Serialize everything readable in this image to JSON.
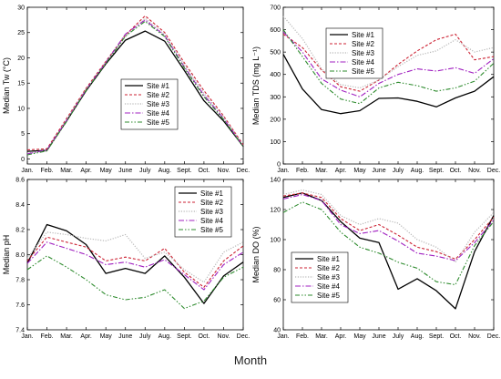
{
  "figure": {
    "xlabel": "Month"
  },
  "series_styles": [
    {
      "color": "#000000",
      "dash": "",
      "width": 1.3
    },
    {
      "color": "#cc2233",
      "dash": "3 2",
      "width": 1.1
    },
    {
      "color": "#b8b8b8",
      "dash": "1.2 1.6",
      "width": 1.2
    },
    {
      "color": "#a020c0",
      "dash": "6 2 1.5 2",
      "width": 1.1
    },
    {
      "color": "#2e8b2e",
      "dash": "5 2 1.5 2 1.5 2",
      "width": 1.1
    }
  ],
  "chart_data": [
    {
      "type": "line",
      "ylabel": "Median Tw (°C)",
      "ylim": [
        -1,
        30
      ],
      "yticks": [
        0,
        5,
        10,
        15,
        20,
        25,
        30
      ],
      "categories": [
        "Jan.",
        "Feb.",
        "Mar.",
        "Apr.",
        "May",
        "June",
        "July",
        "Aug.",
        "Sept.",
        "Oct.",
        "Nov.",
        "Dec."
      ],
      "legend_position": "center",
      "series": [
        {
          "name": "Site #1",
          "values": [
            1.5,
            1.7,
            7.5,
            13.5,
            18.8,
            23.5,
            25.3,
            23.3,
            17.5,
            11.5,
            7.5,
            2.5
          ]
        },
        {
          "name": "Site #2",
          "values": [
            1.8,
            2.0,
            8.0,
            14.0,
            19.3,
            24.5,
            28.3,
            25.0,
            19.0,
            13.5,
            8.5,
            2.8
          ]
        },
        {
          "name": "Site #3",
          "values": [
            1.2,
            1.5,
            7.8,
            13.8,
            19.0,
            24.2,
            27.8,
            24.6,
            18.6,
            13.0,
            8.3,
            2.6
          ]
        },
        {
          "name": "Site #4",
          "values": [
            1.0,
            1.8,
            7.6,
            13.7,
            19.1,
            24.7,
            27.5,
            24.4,
            18.2,
            12.6,
            8.0,
            2.5
          ]
        },
        {
          "name": "Site #5",
          "values": [
            0.8,
            1.6,
            7.4,
            13.6,
            18.9,
            24.3,
            27.2,
            24.2,
            18.0,
            12.3,
            7.8,
            2.4
          ]
        }
      ]
    },
    {
      "type": "line",
      "ylabel": "Median TDS (mg L⁻¹)",
      "ylim": [
        0,
        700
      ],
      "yticks": [
        0,
        100,
        200,
        300,
        400,
        500,
        600,
        700
      ],
      "categories": [
        "Jan.",
        "Feb.",
        "Mar.",
        "Apr.",
        "May",
        "June",
        "July",
        "Aug.",
        "Sept.",
        "Oct.",
        "Nov.",
        "Dec."
      ],
      "legend_position": "center",
      "series": [
        {
          "name": "Site #1",
          "values": [
            490,
            335,
            243,
            225,
            238,
            293,
            295,
            280,
            255,
            295,
            325,
            390
          ]
        },
        {
          "name": "Site #2",
          "values": [
            580,
            520,
            420,
            345,
            325,
            375,
            445,
            505,
            555,
            580,
            465,
            480
          ]
        },
        {
          "name": "Site #3",
          "values": [
            660,
            560,
            425,
            355,
            340,
            375,
            435,
            485,
            505,
            555,
            500,
            520
          ]
        },
        {
          "name": "Site #4",
          "values": [
            590,
            500,
            380,
            330,
            300,
            360,
            400,
            425,
            415,
            430,
            405,
            470
          ]
        },
        {
          "name": "Site #5",
          "values": [
            600,
            480,
            360,
            290,
            270,
            340,
            365,
            350,
            325,
            340,
            370,
            450
          ]
        }
      ]
    },
    {
      "type": "line",
      "ylabel": "Median pH",
      "ylim": [
        7.4,
        8.6
      ],
      "yticks": [
        7.4,
        7.6,
        7.8,
        8.0,
        8.2,
        8.4,
        8.6
      ],
      "categories": [
        "Jan.",
        "Feb.",
        "Mar.",
        "Apr.",
        "May",
        "June",
        "July",
        "Aug.",
        "Sept.",
        "Oct.",
        "Nov.",
        "Dec."
      ],
      "legend_position": "top-right",
      "series": [
        {
          "name": "Site #1",
          "values": [
            7.93,
            8.24,
            8.19,
            8.08,
            7.85,
            7.89,
            7.85,
            7.99,
            7.82,
            7.61,
            7.83,
            7.94
          ]
        },
        {
          "name": "Site #2",
          "values": [
            7.95,
            8.14,
            8.1,
            8.06,
            7.95,
            7.98,
            7.95,
            8.05,
            7.86,
            7.74,
            7.95,
            8.07
          ]
        },
        {
          "name": "Site #3",
          "values": [
            7.97,
            8.18,
            8.16,
            8.13,
            8.11,
            8.16,
            7.97,
            8.02,
            7.88,
            7.78,
            8.02,
            8.1
          ]
        },
        {
          "name": "Site #4",
          "values": [
            7.93,
            8.1,
            8.05,
            8.0,
            7.92,
            7.94,
            7.9,
            7.96,
            7.84,
            7.72,
            7.92,
            8.02
          ]
        },
        {
          "name": "Site #5",
          "values": [
            7.88,
            7.99,
            7.9,
            7.8,
            7.68,
            7.64,
            7.66,
            7.72,
            7.57,
            7.63,
            7.82,
            7.9
          ]
        }
      ]
    },
    {
      "type": "line",
      "ylabel": "Median DO (%)",
      "ylim": [
        40,
        140
      ],
      "yticks": [
        40,
        60,
        80,
        100,
        120,
        140
      ],
      "categories": [
        "Jan.",
        "Feb.",
        "Mar.",
        "Apr.",
        "May",
        "June",
        "July",
        "Aug.",
        "Sept.",
        "Oct.",
        "Nov.",
        "Dec."
      ],
      "legend_position": "bottom-left",
      "series": [
        {
          "name": "Site #1",
          "values": [
            128,
            131,
            126,
            112,
            101,
            98,
            67,
            74,
            66,
            54,
            92,
            116
          ]
        },
        {
          "name": "Site #2",
          "values": [
            129,
            131,
            128,
            114,
            106,
            110,
            103,
            95,
            92,
            87,
            100,
            115
          ]
        },
        {
          "name": "Site #3",
          "values": [
            130,
            133,
            130,
            116,
            110,
            114,
            111,
            100,
            95,
            85,
            105,
            118
          ]
        },
        {
          "name": "Site #4",
          "values": [
            127,
            130,
            126,
            110,
            104,
            106,
            99,
            91,
            89,
            86,
            98,
            113
          ]
        },
        {
          "name": "Site #5",
          "values": [
            118,
            125,
            120,
            105,
            95,
            91,
            85,
            81,
            72,
            70,
            96,
            112
          ]
        }
      ]
    }
  ]
}
